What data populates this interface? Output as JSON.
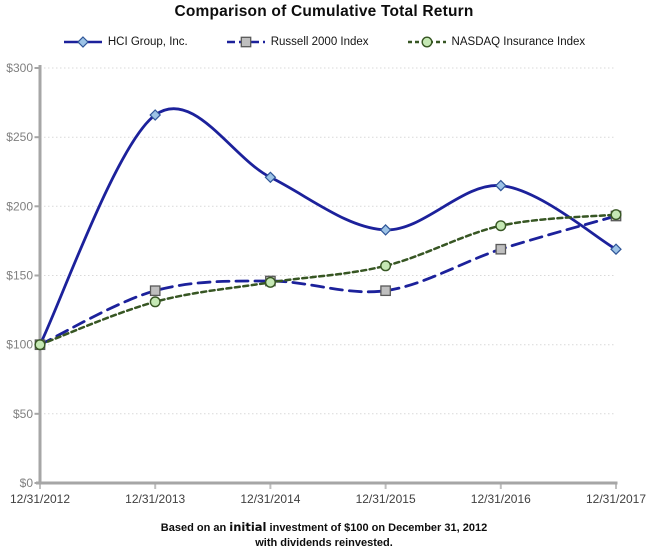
{
  "title": "Comparison of Cumulative Total Return",
  "footer": {
    "line1_part1": "Based on an ",
    "line1_emph": "initial",
    "line1_part3": " investment of $100 on December 31, 2012",
    "line2": "with dividends reinvested."
  },
  "colors": {
    "axis": "#A6A6A6",
    "x_tick": "#BFBFBF",
    "gridline": "#D9D9D9",
    "ytick_label": "#808080",
    "xtick_label": "#404040",
    "title": "#0d0d0d"
  },
  "chart_data": {
    "type": "line",
    "title": "Comparison of Cumulative Total Return",
    "xlabel": "",
    "ylabel": "",
    "categories": [
      "12/31/2012",
      "12/31/2013",
      "12/31/2014",
      "12/31/2015",
      "12/31/2016",
      "12/31/2017"
    ],
    "series": [
      {
        "name": "HCI Group, Inc.",
        "values": [
          100,
          266,
          221,
          183,
          215,
          169
        ],
        "line_color": "#1C219B",
        "line_style": "solid",
        "line_width": 2.8,
        "marker": "diamond",
        "marker_fill": "#9DC3E6",
        "marker_stroke": "#2F5597"
      },
      {
        "name": "Russell 2000 Index",
        "values": [
          100,
          139,
          146,
          139,
          169,
          193
        ],
        "line_color": "#1C219B",
        "line_style": "long-dash",
        "line_width": 2.8,
        "marker": "square",
        "marker_fill": "#BFBFBF",
        "marker_stroke": "#595959"
      },
      {
        "name": "NASDAQ Insurance Index",
        "values": [
          100,
          131,
          145,
          157,
          186,
          194
        ],
        "line_color": "#375623",
        "line_style": "short-dash",
        "line_width": 2.5,
        "marker": "circle",
        "marker_fill": "#C5E8B4",
        "marker_stroke": "#375623"
      }
    ],
    "ylim": [
      0,
      300
    ],
    "ytick_step": 50,
    "ytick_prefix": "$",
    "grid": true,
    "smooth": true,
    "legend_position": "top"
  }
}
